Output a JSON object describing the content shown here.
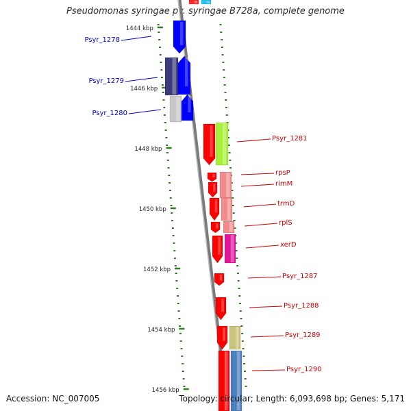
{
  "title": "Pseudomonas syringae pv. syringae B728a, complete genome",
  "footer": {
    "accession": "Accession: NC_007005",
    "topology": "Topology: circular; Length: 6,093,698 bp; Genes: 5,171"
  },
  "scale": {
    "unit": "kbp",
    "ticks": [
      "1444 kbp",
      "1446 kbp",
      "1448 kbp",
      "1450 kbp",
      "1452 kbp",
      "1454 kbp",
      "1456 kbp"
    ]
  },
  "colors": {
    "forward_gene": "#ff0000",
    "reverse_gene": "#0000ff",
    "backbone": "#7a7a7a",
    "tick": "#2e7d1e",
    "label_left": "#0000cc",
    "label_right": "#cc0000"
  },
  "genes_left": [
    {
      "name": "Psyr_1278"
    },
    {
      "name": "Psyr_1279"
    },
    {
      "name": "Psyr_1280"
    }
  ],
  "genes_right": [
    {
      "name": "Psyr_1281"
    },
    {
      "name": "rpsP"
    },
    {
      "name": "rimM"
    },
    {
      "name": "trmD"
    },
    {
      "name": "rplS"
    },
    {
      "name": "xerD"
    },
    {
      "name": "Psyr_1287"
    },
    {
      "name": "Psyr_1288"
    },
    {
      "name": "Psyr_1289"
    },
    {
      "name": "Psyr_1290"
    }
  ]
}
